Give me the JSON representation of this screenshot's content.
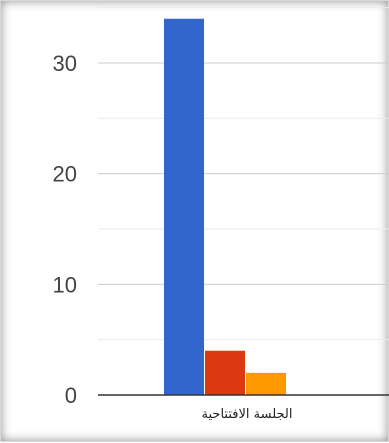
{
  "chart_data": {
    "type": "bar",
    "categories": [
      "الجلسة الافتتاحية"
    ],
    "series": [
      {
        "values": [
          34
        ],
        "color": "#3366cc"
      },
      {
        "values": [
          4
        ],
        "color": "#dc3912"
      },
      {
        "values": [
          2
        ],
        "color": "#ff9900"
      }
    ],
    "ylim": [
      0,
      35
    ],
    "yticks": [
      0,
      10,
      20,
      30
    ],
    "grid": true,
    "legend": "none"
  }
}
